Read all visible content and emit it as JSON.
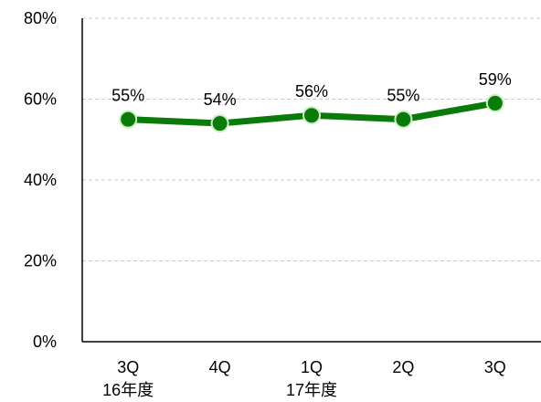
{
  "chart_data": {
    "type": "line",
    "categories": [
      "3Q",
      "4Q",
      "1Q",
      "2Q",
      "3Q"
    ],
    "category_sublabels": [
      "16年度",
      "",
      "17年度",
      "",
      ""
    ],
    "series": [
      {
        "values": [
          55,
          54,
          56,
          55,
          59
        ],
        "data_labels": [
          "55%",
          "54%",
          "56%",
          "55%",
          "59%"
        ]
      }
    ],
    "ylim": [
      0,
      80
    ],
    "yticks": [
      0,
      20,
      40,
      60,
      80
    ],
    "ytick_labels": [
      "0%",
      "20%",
      "40%",
      "60%",
      "80%"
    ],
    "grid": true,
    "legend": "none",
    "colors": {
      "line": "#0a7a0a",
      "marker_fill": "#0a7a0a",
      "marker_stroke": "#c8f0c0",
      "grid": "#c8c8c8",
      "axis": "#000000"
    }
  }
}
